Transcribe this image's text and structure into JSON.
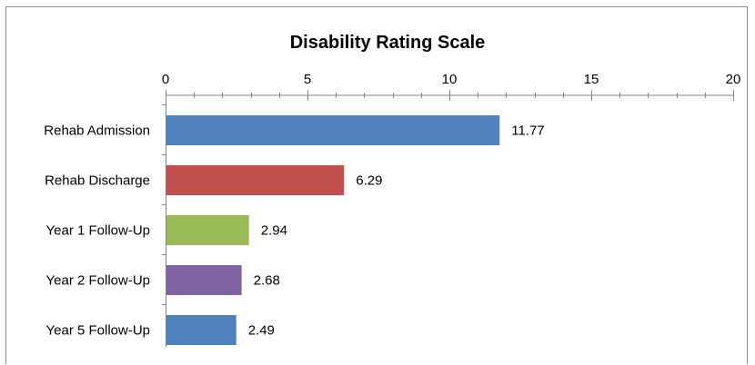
{
  "chart_data": {
    "type": "bar",
    "orientation": "horizontal",
    "title": "Disability Rating Scale",
    "xlim": [
      0,
      20
    ],
    "major_ticks": [
      0,
      5,
      10,
      15,
      20
    ],
    "minor_tick_step": 1,
    "axis_position": "top",
    "grid": false,
    "legend": "none",
    "categories": [
      "Rehab Admission",
      "Rehab Discharge",
      "Year 1 Follow-Up",
      "Year 2 Follow-Up",
      "Year 5 Follow-Up"
    ],
    "values": [
      11.77,
      6.29,
      2.94,
      2.68,
      2.49
    ],
    "value_labels": [
      "11.77",
      "6.29",
      "2.94",
      "2.68",
      "2.49"
    ],
    "colors": [
      "#4f81bd",
      "#c0504d",
      "#9bbb59",
      "#8064a2",
      "#4f81bd"
    ]
  }
}
